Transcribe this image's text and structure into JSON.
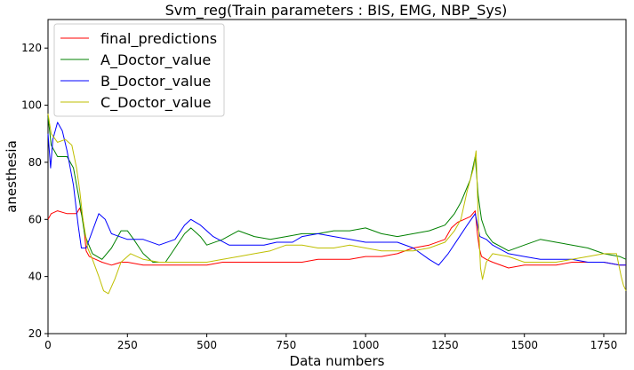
{
  "chart_data": {
    "type": "line",
    "title": "Svm_reg(Train parameters : BIS, EMG, NBP_Sys)",
    "xlabel": "Data numbers",
    "ylabel": "anesthesia",
    "xlim": [
      0,
      1820
    ],
    "ylim": [
      20,
      130
    ],
    "xticks": [
      0,
      250,
      500,
      750,
      1000,
      1250,
      1500,
      1750
    ],
    "yticks": [
      20,
      40,
      60,
      80,
      100,
      120
    ],
    "grid": false,
    "legend_position": "top-left",
    "series": [
      {
        "name": "final_predictions",
        "color": "#ff0000",
        "points": [
          [
            0,
            60
          ],
          [
            10,
            62
          ],
          [
            30,
            63
          ],
          [
            60,
            62
          ],
          [
            90,
            62
          ],
          [
            100,
            64
          ],
          [
            110,
            60
          ],
          [
            115,
            55
          ],
          [
            120,
            49
          ],
          [
            130,
            47
          ],
          [
            150,
            46
          ],
          [
            170,
            45
          ],
          [
            200,
            44
          ],
          [
            230,
            45
          ],
          [
            250,
            45
          ],
          [
            300,
            44
          ],
          [
            350,
            44
          ],
          [
            400,
            44
          ],
          [
            450,
            44
          ],
          [
            500,
            44
          ],
          [
            550,
            45
          ],
          [
            600,
            45
          ],
          [
            650,
            45
          ],
          [
            700,
            45
          ],
          [
            750,
            45
          ],
          [
            800,
            45
          ],
          [
            850,
            46
          ],
          [
            900,
            46
          ],
          [
            950,
            46
          ],
          [
            1000,
            47
          ],
          [
            1050,
            47
          ],
          [
            1100,
            48
          ],
          [
            1150,
            50
          ],
          [
            1200,
            51
          ],
          [
            1250,
            53
          ],
          [
            1270,
            57
          ],
          [
            1290,
            59
          ],
          [
            1310,
            60
          ],
          [
            1330,
            61
          ],
          [
            1345,
            63
          ],
          [
            1352,
            55
          ],
          [
            1358,
            50
          ],
          [
            1365,
            47
          ],
          [
            1380,
            46
          ],
          [
            1400,
            45
          ],
          [
            1450,
            43
          ],
          [
            1500,
            44
          ],
          [
            1550,
            44
          ],
          [
            1600,
            44
          ],
          [
            1650,
            45
          ],
          [
            1700,
            45
          ],
          [
            1750,
            45
          ],
          [
            1800,
            44
          ],
          [
            1820,
            44
          ]
        ]
      },
      {
        "name": "A_Doctor_value",
        "color": "#008000",
        "points": [
          [
            0,
            96
          ],
          [
            10,
            86
          ],
          [
            30,
            82
          ],
          [
            60,
            82
          ],
          [
            80,
            78
          ],
          [
            100,
            66
          ],
          [
            115,
            55
          ],
          [
            125,
            52
          ],
          [
            140,
            48
          ],
          [
            170,
            46
          ],
          [
            200,
            50
          ],
          [
            230,
            56
          ],
          [
            250,
            56
          ],
          [
            270,
            53
          ],
          [
            300,
            48
          ],
          [
            330,
            45
          ],
          [
            370,
            45
          ],
          [
            400,
            50
          ],
          [
            430,
            55
          ],
          [
            450,
            57
          ],
          [
            480,
            54
          ],
          [
            500,
            51
          ],
          [
            550,
            53
          ],
          [
            600,
            56
          ],
          [
            650,
            54
          ],
          [
            700,
            53
          ],
          [
            750,
            54
          ],
          [
            800,
            55
          ],
          [
            850,
            55
          ],
          [
            900,
            56
          ],
          [
            950,
            56
          ],
          [
            1000,
            57
          ],
          [
            1050,
            55
          ],
          [
            1100,
            54
          ],
          [
            1150,
            55
          ],
          [
            1200,
            56
          ],
          [
            1250,
            58
          ],
          [
            1280,
            62
          ],
          [
            1300,
            66
          ],
          [
            1330,
            74
          ],
          [
            1345,
            82
          ],
          [
            1355,
            68
          ],
          [
            1365,
            60
          ],
          [
            1380,
            55
          ],
          [
            1400,
            52
          ],
          [
            1450,
            49
          ],
          [
            1500,
            51
          ],
          [
            1550,
            53
          ],
          [
            1600,
            52
          ],
          [
            1650,
            51
          ],
          [
            1700,
            50
          ],
          [
            1750,
            48
          ],
          [
            1800,
            47
          ],
          [
            1820,
            46
          ]
        ]
      },
      {
        "name": "B_Doctor_value",
        "color": "#0000ff",
        "points": [
          [
            0,
            90
          ],
          [
            8,
            78
          ],
          [
            15,
            88
          ],
          [
            30,
            94
          ],
          [
            45,
            91
          ],
          [
            60,
            84
          ],
          [
            80,
            72
          ],
          [
            95,
            58
          ],
          [
            105,
            50
          ],
          [
            120,
            50
          ],
          [
            140,
            56
          ],
          [
            160,
            62
          ],
          [
            180,
            60
          ],
          [
            200,
            55
          ],
          [
            250,
            53
          ],
          [
            300,
            53
          ],
          [
            350,
            51
          ],
          [
            400,
            53
          ],
          [
            430,
            58
          ],
          [
            450,
            60
          ],
          [
            480,
            58
          ],
          [
            520,
            54
          ],
          [
            570,
            51
          ],
          [
            620,
            51
          ],
          [
            680,
            51
          ],
          [
            720,
            52
          ],
          [
            770,
            52
          ],
          [
            800,
            54
          ],
          [
            850,
            55
          ],
          [
            900,
            54
          ],
          [
            950,
            53
          ],
          [
            1000,
            52
          ],
          [
            1050,
            52
          ],
          [
            1100,
            52
          ],
          [
            1150,
            50
          ],
          [
            1200,
            46
          ],
          [
            1230,
            44
          ],
          [
            1260,
            48
          ],
          [
            1290,
            53
          ],
          [
            1320,
            58
          ],
          [
            1345,
            62
          ],
          [
            1360,
            54
          ],
          [
            1380,
            53
          ],
          [
            1400,
            51
          ],
          [
            1450,
            48
          ],
          [
            1500,
            47
          ],
          [
            1550,
            46
          ],
          [
            1600,
            46
          ],
          [
            1650,
            46
          ],
          [
            1700,
            45
          ],
          [
            1750,
            45
          ],
          [
            1800,
            44
          ],
          [
            1820,
            44
          ]
        ]
      },
      {
        "name": "C_Doctor_value",
        "color": "#bfbf00",
        "points": [
          [
            0,
            97
          ],
          [
            10,
            90
          ],
          [
            30,
            87
          ],
          [
            55,
            88
          ],
          [
            75,
            86
          ],
          [
            90,
            78
          ],
          [
            100,
            70
          ],
          [
            110,
            60
          ],
          [
            125,
            50
          ],
          [
            140,
            46
          ],
          [
            160,
            40
          ],
          [
            175,
            35
          ],
          [
            190,
            34
          ],
          [
            210,
            39
          ],
          [
            230,
            45
          ],
          [
            260,
            48
          ],
          [
            300,
            46
          ],
          [
            350,
            45
          ],
          [
            400,
            45
          ],
          [
            450,
            45
          ],
          [
            500,
            45
          ],
          [
            550,
            46
          ],
          [
            600,
            47
          ],
          [
            650,
            48
          ],
          [
            700,
            49
          ],
          [
            750,
            51
          ],
          [
            800,
            51
          ],
          [
            850,
            50
          ],
          [
            900,
            50
          ],
          [
            950,
            51
          ],
          [
            1000,
            50
          ],
          [
            1050,
            49
          ],
          [
            1100,
            49
          ],
          [
            1150,
            49
          ],
          [
            1200,
            50
          ],
          [
            1250,
            52
          ],
          [
            1280,
            56
          ],
          [
            1300,
            60
          ],
          [
            1320,
            70
          ],
          [
            1340,
            78
          ],
          [
            1348,
            84
          ],
          [
            1355,
            60
          ],
          [
            1362,
            43
          ],
          [
            1368,
            39
          ],
          [
            1380,
            45
          ],
          [
            1400,
            48
          ],
          [
            1450,
            47
          ],
          [
            1500,
            45
          ],
          [
            1550,
            45
          ],
          [
            1600,
            45
          ],
          [
            1650,
            46
          ],
          [
            1700,
            47
          ],
          [
            1750,
            48
          ],
          [
            1790,
            48
          ],
          [
            1805,
            40
          ],
          [
            1812,
            37
          ],
          [
            1820,
            35
          ]
        ]
      }
    ]
  }
}
